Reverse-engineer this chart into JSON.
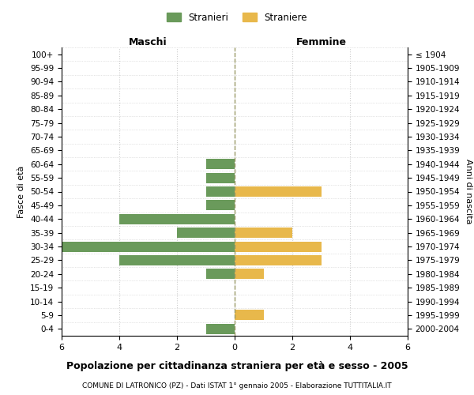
{
  "age_groups": [
    "100+",
    "95-99",
    "90-94",
    "85-89",
    "80-84",
    "75-79",
    "70-74",
    "65-69",
    "60-64",
    "55-59",
    "50-54",
    "45-49",
    "40-44",
    "35-39",
    "30-34",
    "25-29",
    "20-24",
    "15-19",
    "10-14",
    "5-9",
    "0-4"
  ],
  "birth_years": [
    "≤ 1904",
    "1905-1909",
    "1910-1914",
    "1915-1919",
    "1920-1924",
    "1925-1929",
    "1930-1934",
    "1935-1939",
    "1940-1944",
    "1945-1949",
    "1950-1954",
    "1955-1959",
    "1960-1964",
    "1965-1969",
    "1970-1974",
    "1975-1979",
    "1980-1984",
    "1985-1989",
    "1990-1994",
    "1995-1999",
    "2000-2004"
  ],
  "males": [
    0,
    0,
    0,
    0,
    0,
    0,
    0,
    0,
    1,
    1,
    1,
    1,
    4,
    2,
    6,
    4,
    1,
    0,
    0,
    0,
    1
  ],
  "females": [
    0,
    0,
    0,
    0,
    0,
    0,
    0,
    0,
    0,
    0,
    3,
    0,
    0,
    2,
    3,
    3,
    1,
    0,
    0,
    1,
    0
  ],
  "male_color": "#6a9a5b",
  "female_color": "#e8b84b",
  "title": "Popolazione per cittadinanza straniera per età e sesso - 2005",
  "subtitle": "COMUNE DI LATRONICO (PZ) - Dati ISTAT 1° gennaio 2005 - Elaborazione TUTTITALIA.IT",
  "header_left": "Maschi",
  "header_right": "Femmine",
  "ylabel_left": "Fasce di età",
  "ylabel_right": "Anni di nascita",
  "legend_male": "Stranieri",
  "legend_female": "Straniere",
  "xlim": 6,
  "background_color": "#ffffff",
  "grid_color": "#cccccc",
  "grid_style": "--",
  "zero_line_color": "#999966"
}
